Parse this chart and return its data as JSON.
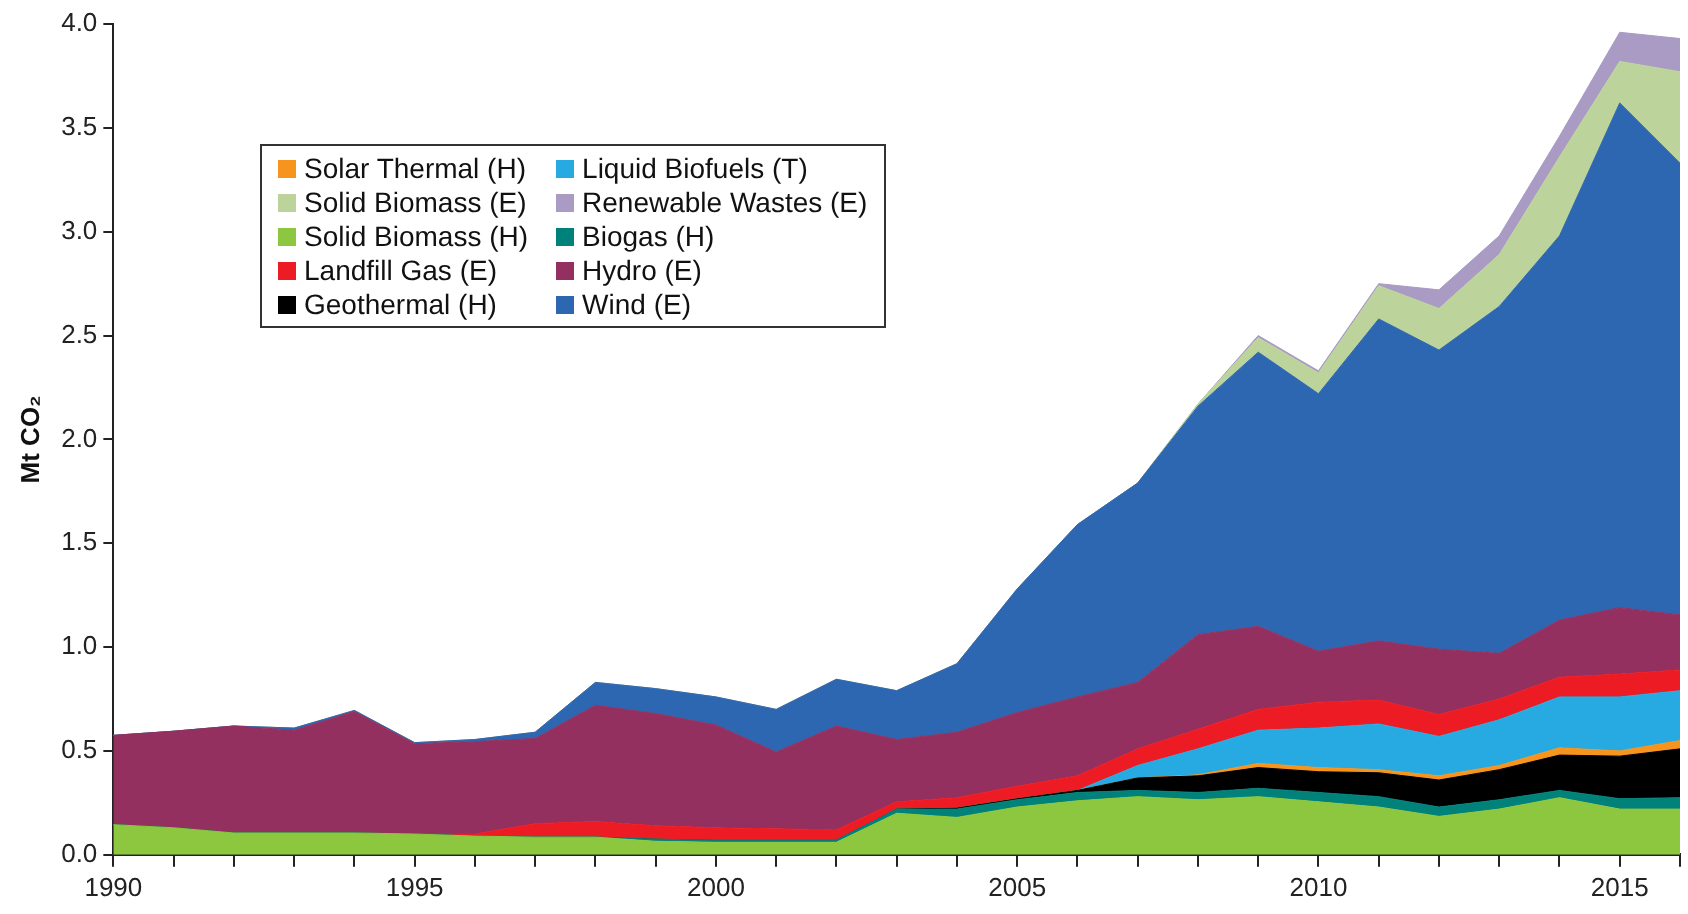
{
  "chart_data": {
    "type": "area",
    "stacked": true,
    "ylabel": "Mt CO₂",
    "legend": "top left",
    "grid": false,
    "marker": "none",
    "x": [
      1990,
      1991,
      1992,
      1993,
      1994,
      1995,
      1996,
      1997,
      1998,
      1999,
      2000,
      2001,
      2002,
      2003,
      2004,
      2005,
      2006,
      2007,
      2008,
      2009,
      2010,
      2011,
      2012,
      2013,
      2014,
      2015,
      2016
    ],
    "xlim": [
      1990,
      2016
    ],
    "xticks": [
      1990,
      {
        "value": 1991,
        "label": null
      },
      {
        "value": 1992,
        "label": null
      },
      {
        "value": 1993,
        "label": null
      },
      {
        "value": 1994,
        "label": null
      },
      1995,
      {
        "value": 1996,
        "label": null
      },
      {
        "value": 1997,
        "label": null
      },
      {
        "value": 1998,
        "label": null
      },
      {
        "value": 1999,
        "label": null
      },
      2000,
      {
        "value": 2001,
        "label": null
      },
      {
        "value": 2002,
        "label": null
      },
      {
        "value": 2003,
        "label": null
      },
      {
        "value": 2004,
        "label": null
      },
      2005,
      {
        "value": 2006,
        "label": null
      },
      {
        "value": 2007,
        "label": null
      },
      {
        "value": 2008,
        "label": null
      },
      {
        "value": 2009,
        "label": null
      },
      2010,
      {
        "value": 2011,
        "label": null
      },
      {
        "value": 2012,
        "label": null
      },
      {
        "value": 2013,
        "label": null
      },
      {
        "value": 2014,
        "label": null
      },
      2015,
      {
        "value": 2016,
        "label": null
      }
    ],
    "ylim": [
      0,
      4
    ],
    "yticks": [
      {
        "value": 0,
        "label": "0.0"
      },
      {
        "value": 0.5,
        "label": "0.5"
      },
      {
        "value": 1,
        "label": "1.0"
      },
      {
        "value": 1.5,
        "label": "1.5"
      },
      {
        "value": 2,
        "label": "2.0"
      },
      {
        "value": 2.5,
        "label": "2.5"
      },
      {
        "value": 3,
        "label": "3.0"
      },
      {
        "value": 3.5,
        "label": "3.5"
      },
      {
        "value": 4,
        "label": "4.0"
      }
    ],
    "series": [
      {
        "name": "Solid Biomass (H)",
        "color": "#8dc63f",
        "values": [
          0.145,
          0.13,
          0.105,
          0.105,
          0.105,
          0.1,
          0.09,
          0.085,
          0.085,
          0.065,
          0.06,
          0.06,
          0.06,
          0.2,
          0.18,
          0.23,
          0.26,
          0.28,
          0.265,
          0.28,
          0.255,
          0.23,
          0.185,
          0.22,
          0.275,
          0.22,
          0.22
        ]
      },
      {
        "name": "Biogas (H)",
        "color": "#00827a",
        "values": [
          0,
          0,
          0,
          0,
          0,
          0,
          0,
          0,
          0,
          0.01,
          0.01,
          0.01,
          0.01,
          0.02,
          0.04,
          0.035,
          0.04,
          0.03,
          0.035,
          0.04,
          0.045,
          0.05,
          0.045,
          0.045,
          0.035,
          0.05,
          0.055
        ]
      },
      {
        "name": "Geothermal (H)",
        "color": "#000000",
        "values": [
          0,
          0,
          0,
          0,
          0,
          0,
          0,
          0,
          0,
          0,
          0,
          0,
          0,
          0,
          0.005,
          0.005,
          0.01,
          0.06,
          0.08,
          0.1,
          0.1,
          0.115,
          0.13,
          0.145,
          0.17,
          0.205,
          0.235
        ]
      },
      {
        "name": "Solar Thermal (H)",
        "color": "#f7941d",
        "values": [
          0,
          0,
          0,
          0,
          0,
          0,
          0,
          0,
          0,
          0,
          0,
          0,
          0,
          0,
          0,
          0,
          0,
          0,
          0.005,
          0.02,
          0.02,
          0.015,
          0.02,
          0.02,
          0.035,
          0.025,
          0.04
        ]
      },
      {
        "name": "Liquid Biofuels (T)",
        "color": "#27aae1",
        "values": [
          0,
          0,
          0,
          0,
          0,
          0,
          0,
          0,
          0,
          0,
          0,
          0,
          0,
          0,
          0,
          0,
          0,
          0.06,
          0.125,
          0.16,
          0.19,
          0.22,
          0.19,
          0.22,
          0.245,
          0.26,
          0.24
        ]
      },
      {
        "name": "Landfill Gas (E)",
        "color": "#ed1c24",
        "values": [
          0,
          0,
          0,
          0,
          0,
          0,
          0.01,
          0.065,
          0.075,
          0.065,
          0.06,
          0.055,
          0.05,
          0.035,
          0.05,
          0.06,
          0.07,
          0.08,
          0.095,
          0.1,
          0.125,
          0.115,
          0.105,
          0.1,
          0.095,
          0.11,
          0.1
        ]
      },
      {
        "name": "Hydro (E)",
        "color": "#93305f",
        "values": [
          0.43,
          0.465,
          0.515,
          0.495,
          0.585,
          0.435,
          0.445,
          0.41,
          0.56,
          0.54,
          0.495,
          0.37,
          0.5,
          0.3,
          0.315,
          0.355,
          0.38,
          0.32,
          0.455,
          0.4,
          0.245,
          0.285,
          0.315,
          0.22,
          0.275,
          0.32,
          0.265
        ]
      },
      {
        "name": "Wind (E)",
        "color": "#2e67b1",
        "values": [
          0,
          0,
          0,
          0.01,
          0.005,
          0.005,
          0.01,
          0.03,
          0.11,
          0.12,
          0.135,
          0.205,
          0.225,
          0.235,
          0.33,
          0.595,
          0.83,
          0.96,
          1.1,
          1.32,
          1.24,
          1.55,
          1.44,
          1.67,
          1.85,
          2.43,
          2.175
        ]
      },
      {
        "name": "Solid Biomass (E)",
        "color": "#bcd49b",
        "values": [
          0,
          0,
          0,
          0,
          0,
          0,
          0,
          0,
          0,
          0,
          0,
          0,
          0,
          0,
          0,
          0,
          0,
          0,
          0.01,
          0.07,
          0.1,
          0.16,
          0.2,
          0.25,
          0.38,
          0.2,
          0.44
        ]
      },
      {
        "name": "Renewable Wastes (E)",
        "color": "#a99bc4",
        "values": [
          0,
          0,
          0,
          0,
          0,
          0,
          0,
          0,
          0,
          0,
          0,
          0,
          0,
          0,
          0,
          0,
          0,
          0,
          0,
          0.01,
          0.01,
          0.01,
          0.09,
          0.09,
          0.1,
          0.14,
          0.16
        ]
      }
    ]
  }
}
